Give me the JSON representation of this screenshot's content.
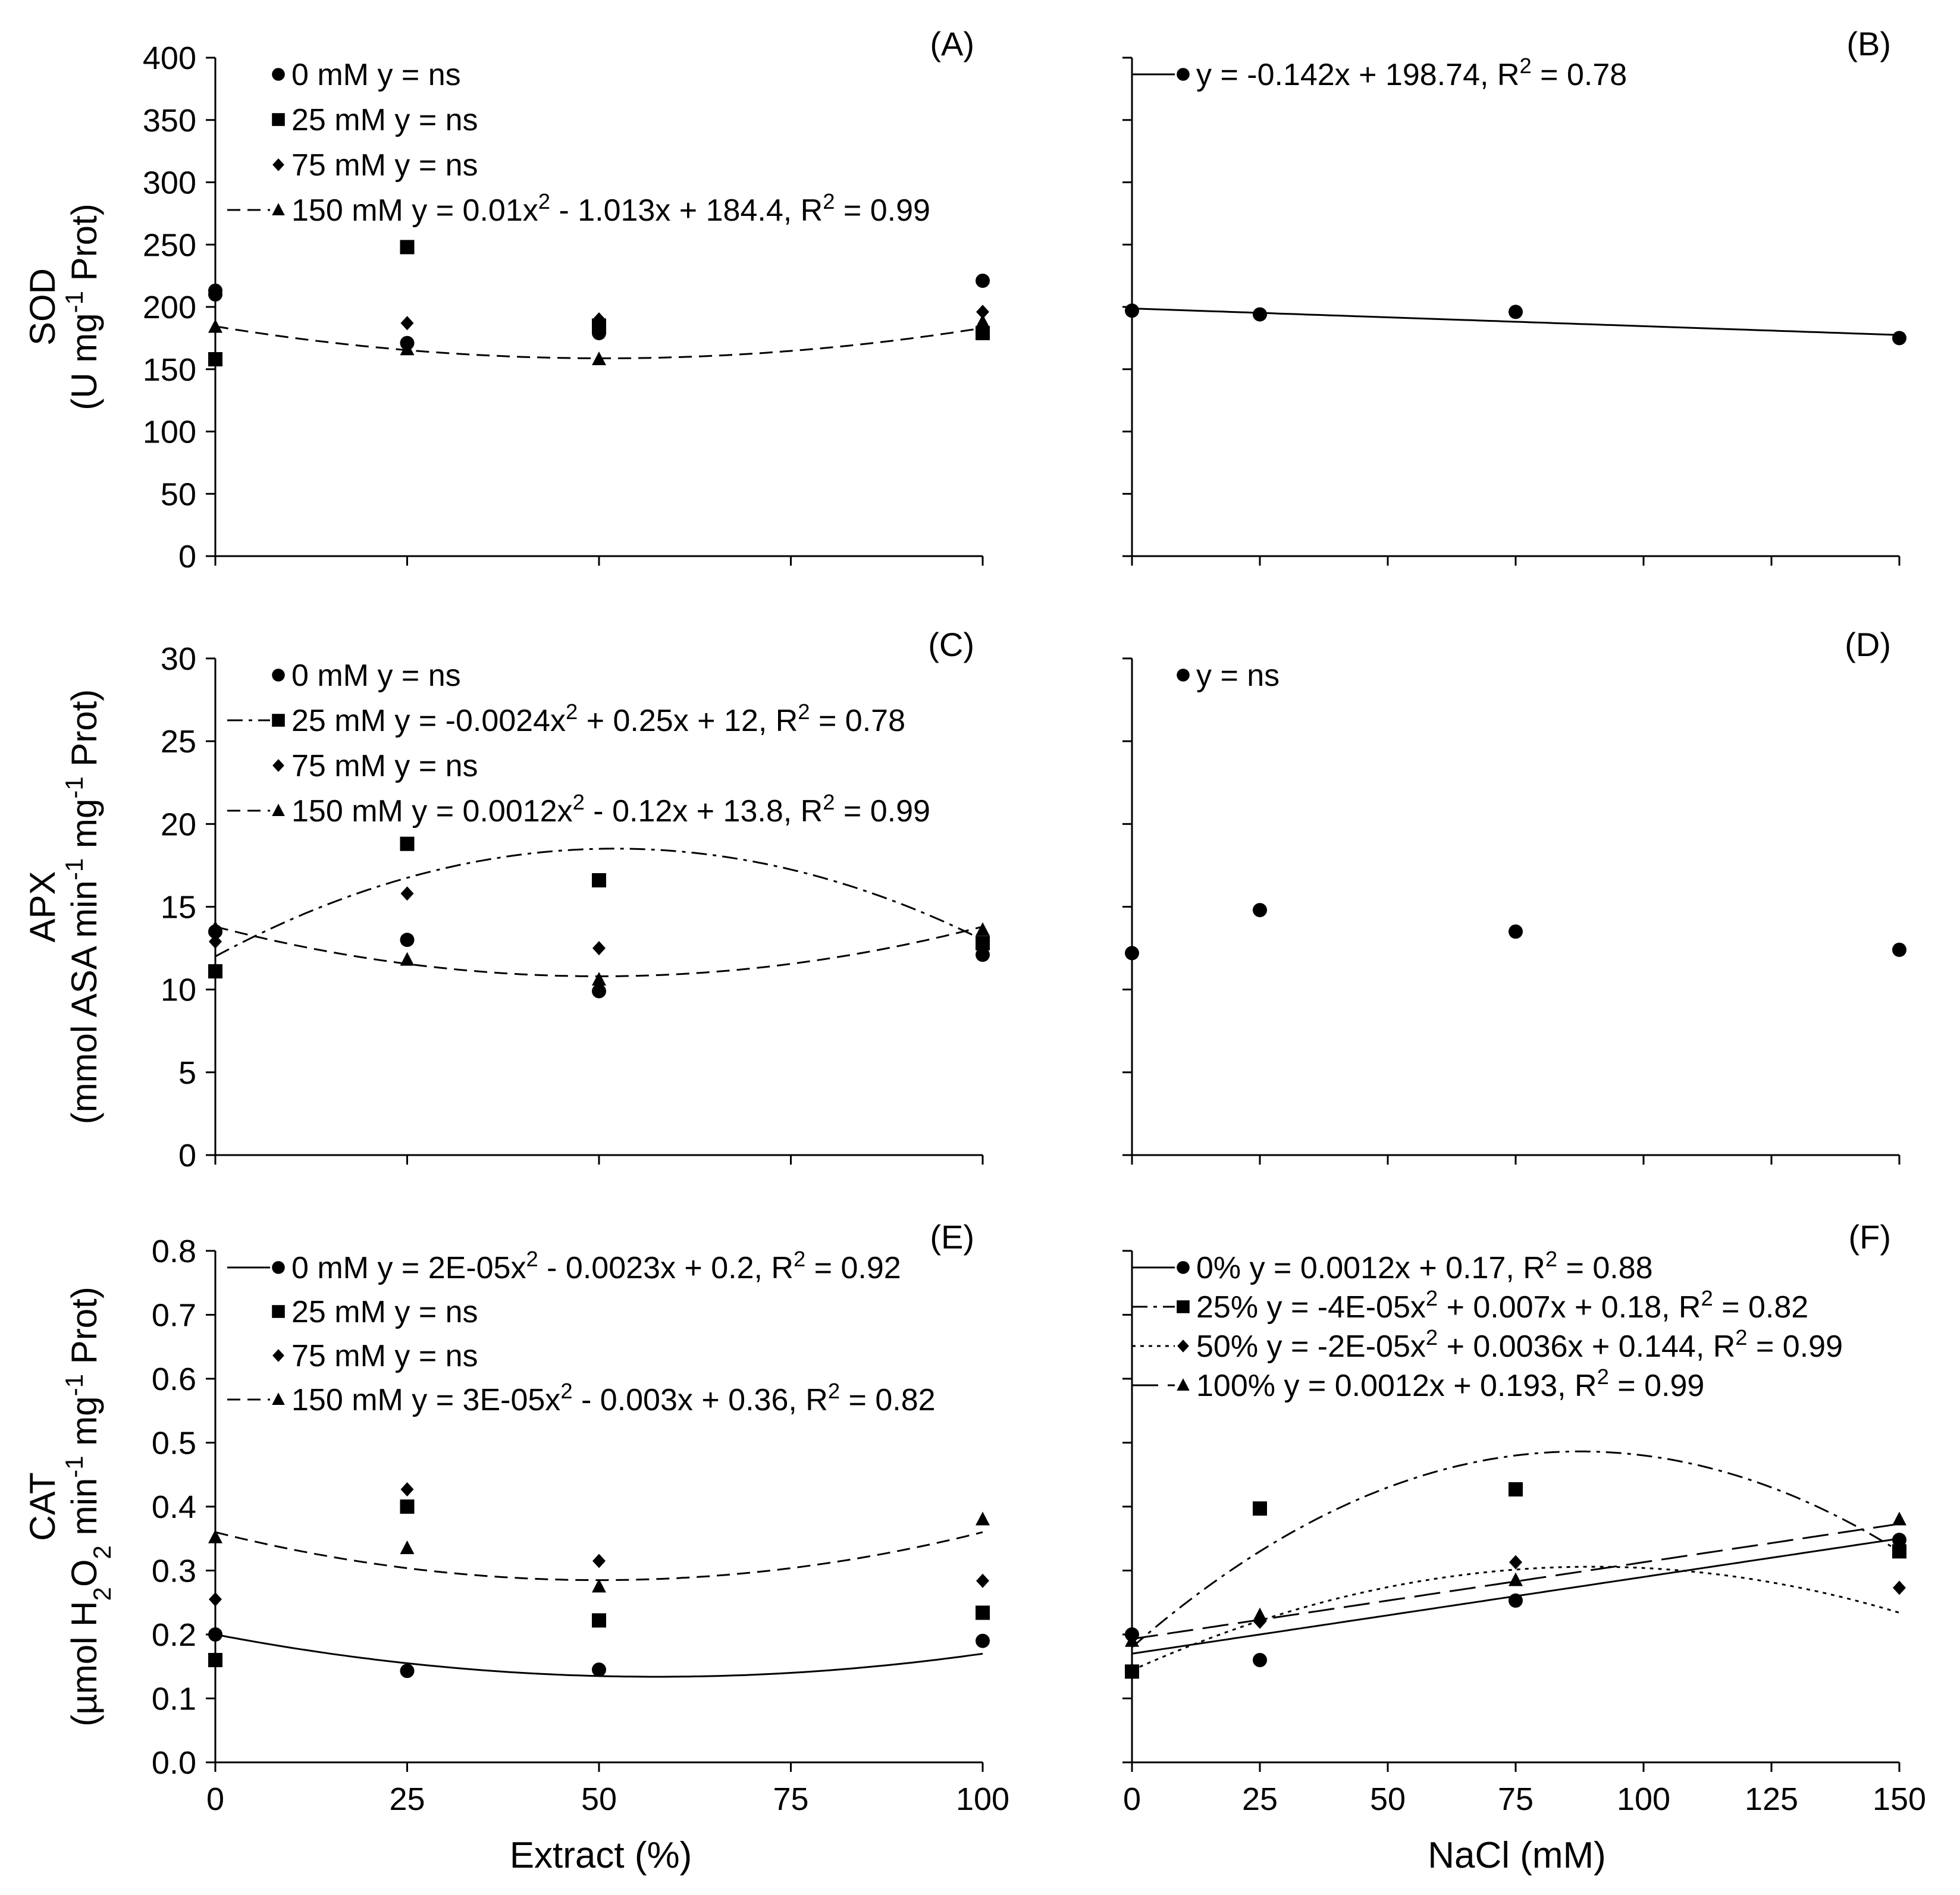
{
  "figure": {
    "colors": {
      "ink": "#000000",
      "background": "#ffffff"
    },
    "xlabels": {
      "left": "Extract (%)",
      "right": "NaCl (mM)"
    }
  },
  "chart_data": [
    {
      "id": "A",
      "panel_label": "(A)",
      "type": "scatter",
      "column": "left",
      "row": 0,
      "ylabel_main": "SOD",
      "ylabel_unit": "(U mg-1 Prot)",
      "ylim": [
        0,
        400
      ],
      "yticks": [
        0,
        50,
        100,
        150,
        200,
        250,
        300,
        350,
        400
      ],
      "ytick_labels": [
        "0",
        "50",
        "100",
        "150",
        "200",
        "250",
        "300",
        "350",
        "400"
      ],
      "xlim": [
        0,
        100
      ],
      "xticks": [
        0,
        25,
        50,
        75,
        100
      ],
      "xtick_labels": [
        "0",
        "25",
        "50",
        "75",
        "100"
      ],
      "show_xtick_labels": false,
      "xlabel": "Extract (%)",
      "series": [
        {
          "name": "0 mM",
          "marker": "circle",
          "x": [
            0,
            0,
            25,
            50,
            50,
            100
          ],
          "y": [
            213,
            210,
            171,
            179,
            183,
            221
          ],
          "legend_text": "0 mM   y = ns"
        },
        {
          "name": "25 mM",
          "marker": "square",
          "x": [
            0,
            25,
            50,
            100
          ],
          "y": [
            158,
            248,
            185,
            179
          ],
          "legend_text": "25 mM   y = ns"
        },
        {
          "name": "75 mM",
          "marker": "diamond",
          "x": [
            0,
            25,
            50,
            100
          ],
          "y": [
            212,
            187,
            190,
            196
          ],
          "legend_text": "75 mM   y = ns"
        },
        {
          "name": "150 mM",
          "marker": "triangle",
          "x": [
            0,
            25,
            50,
            100
          ],
          "y": [
            184,
            166,
            158,
            188
          ],
          "legend_text": "150 mM   y = 0.01x² - 1.013x + 184.4, R² = 0.99",
          "fit": {
            "coef": [
              0.01,
              -1.013,
              184.4
            ],
            "dash": "dashed"
          }
        }
      ]
    },
    {
      "id": "B",
      "panel_label": "(B)",
      "type": "scatter",
      "column": "right",
      "row": 0,
      "ylim": [
        0,
        400
      ],
      "yticks": [
        0,
        50,
        100,
        150,
        200,
        250,
        300,
        350,
        400
      ],
      "xlim": [
        0,
        150
      ],
      "xticks": [
        0,
        25,
        50,
        75,
        100,
        125,
        150
      ],
      "xtick_labels": [
        "0",
        "25",
        "50",
        "75",
        "100",
        "125",
        "150"
      ],
      "show_xtick_labels": false,
      "xlabel": "NaCl (mM)",
      "series": [
        {
          "name": "mean",
          "marker": "circle",
          "x": [
            0,
            25,
            75,
            150
          ],
          "y": [
            197,
            194,
            196,
            175
          ],
          "legend_text": "y = -0.142x + 198.74, R² = 0.78",
          "fit": {
            "coef": [
              0,
              -0.142,
              198.74
            ],
            "dash": "solid"
          }
        }
      ]
    },
    {
      "id": "C",
      "panel_label": "(C)",
      "type": "scatter",
      "column": "left",
      "row": 1,
      "ylabel_main": "APX",
      "ylabel_unit": "(mmol ASA  min-1 mg-1 Prot)",
      "ylim": [
        0,
        30
      ],
      "yticks": [
        0,
        5,
        10,
        15,
        20,
        25,
        30
      ],
      "ytick_labels": [
        "0",
        "5",
        "10",
        "15",
        "20",
        "25",
        "30"
      ],
      "xlim": [
        0,
        100
      ],
      "xticks": [
        0,
        25,
        50,
        75,
        100
      ],
      "xtick_labels": [
        "0",
        "25",
        "50",
        "75",
        "100"
      ],
      "show_xtick_labels": false,
      "xlabel": "Extract (%)",
      "series": [
        {
          "name": "0 mM",
          "marker": "circle",
          "x": [
            0,
            25,
            50,
            100
          ],
          "y": [
            13.5,
            13.0,
            9.9,
            12.1
          ],
          "legend_text": "0 mM   y = ns"
        },
        {
          "name": "25 mM",
          "marker": "square",
          "x": [
            0,
            25,
            50,
            100
          ],
          "y": [
            11.1,
            18.8,
            16.6,
            12.8
          ],
          "legend_text": "25 mM   y = -0.0024x² + 0.25x + 12, R² = 0.78",
          "fit": {
            "coef": [
              -0.0024,
              0.25,
              12
            ],
            "dash": "dashdot"
          }
        },
        {
          "name": "75 mM",
          "marker": "diamond",
          "x": [
            0,
            25,
            50,
            100
          ],
          "y": [
            12.9,
            15.8,
            12.5,
            12.5
          ],
          "legend_text": "75 mM   y = ns"
        },
        {
          "name": "150 mM",
          "marker": "triangle",
          "x": [
            0,
            25,
            50,
            100
          ],
          "y": [
            13.7,
            11.8,
            10.6,
            13.6
          ],
          "legend_text": "150 mM   y = 0.0012x² - 0.12x + 13.8, R² = 0.99",
          "fit": {
            "coef": [
              0.0012,
              -0.12,
              13.8
            ],
            "dash": "dashed"
          }
        }
      ]
    },
    {
      "id": "D",
      "panel_label": "(D)",
      "type": "scatter",
      "column": "right",
      "row": 1,
      "ylim": [
        0,
        30
      ],
      "yticks": [
        0,
        5,
        10,
        15,
        20,
        25,
        30
      ],
      "xlim": [
        0,
        150
      ],
      "xticks": [
        0,
        25,
        50,
        75,
        100,
        125,
        150
      ],
      "xtick_labels": [
        "0",
        "25",
        "50",
        "75",
        "100",
        "125",
        "150"
      ],
      "show_xtick_labels": false,
      "xlabel": "NaCl (mM)",
      "series": [
        {
          "name": "mean",
          "marker": "circle",
          "x": [
            0,
            25,
            75,
            150
          ],
          "y": [
            12.2,
            14.8,
            13.5,
            12.4
          ],
          "legend_text": "y = ns"
        }
      ]
    },
    {
      "id": "E",
      "panel_label": "(E)",
      "type": "scatter",
      "column": "left",
      "row": 2,
      "ylabel_main": "CAT",
      "ylabel_unit": "(µmol H2O2  min-1 mg-1 Prot)",
      "ylim": [
        0,
        0.8
      ],
      "yticks": [
        0,
        0.1,
        0.2,
        0.3,
        0.4,
        0.5,
        0.6,
        0.7,
        0.8
      ],
      "ytick_labels": [
        "0.0",
        "0.1",
        "0.2",
        "0.3",
        "0.4",
        "0.5",
        "0.6",
        "0.7",
        "0.8"
      ],
      "xlim": [
        0,
        100
      ],
      "xticks": [
        0,
        25,
        50,
        75,
        100
      ],
      "xtick_labels": [
        "0",
        "25",
        "50",
        "75",
        "100"
      ],
      "show_xtick_labels": true,
      "xlabel": "Extract (%)",
      "series": [
        {
          "name": "0 mM",
          "marker": "circle",
          "x": [
            0,
            25,
            50,
            100
          ],
          "y": [
            0.2,
            0.143,
            0.145,
            0.19
          ],
          "legend_text": "0 mM   y = 2E-05x² - 0.0023x + 0.2, R² = 0.92",
          "fit": {
            "coef": [
              2e-05,
              -0.0023,
              0.2
            ],
            "dash": "solid"
          }
        },
        {
          "name": "25 mM",
          "marker": "square",
          "x": [
            0,
            25,
            50,
            100
          ],
          "y": [
            0.16,
            0.4,
            0.222,
            0.234
          ],
          "legend_text": "25 mM   y = ns"
        },
        {
          "name": "75 mM",
          "marker": "diamond",
          "x": [
            0,
            25,
            50,
            100
          ],
          "y": [
            0.255,
            0.427,
            0.315,
            0.284
          ],
          "legend_text": "75 mM   y = ns"
        },
        {
          "name": "150 mM",
          "marker": "triangle",
          "x": [
            0,
            25,
            50,
            100
          ],
          "y": [
            0.352,
            0.335,
            0.275,
            0.38
          ],
          "legend_text": "150 mM   y = 3E-05x² - 0.003x + 0.36, R² = 0.82",
          "fit": {
            "coef": [
              3e-05,
              -0.003,
              0.36
            ],
            "dash": "dashed"
          }
        }
      ]
    },
    {
      "id": "F",
      "panel_label": "(F)",
      "type": "scatter",
      "column": "right",
      "row": 2,
      "ylim": [
        0,
        0.8
      ],
      "yticks": [
        0,
        0.1,
        0.2,
        0.3,
        0.4,
        0.5,
        0.6,
        0.7,
        0.8
      ],
      "xlim": [
        0,
        150
      ],
      "xticks": [
        0,
        25,
        50,
        75,
        100,
        125,
        150
      ],
      "xtick_labels": [
        "0",
        "25",
        "50",
        "75",
        "100",
        "125",
        "150"
      ],
      "show_xtick_labels": true,
      "xlabel": "NaCl (mM)",
      "series": [
        {
          "name": "0%",
          "marker": "circle",
          "x": [
            0,
            25,
            75,
            150
          ],
          "y": [
            0.2,
            0.16,
            0.253,
            0.348
          ],
          "legend_text": "0%   y = 0.0012x + 0.17, R² = 0.88",
          "fit": {
            "coef": [
              0,
              0.0012,
              0.17
            ],
            "dash": "solid"
          }
        },
        {
          "name": "25%",
          "marker": "square",
          "x": [
            0,
            25,
            75,
            150
          ],
          "y": [
            0.142,
            0.397,
            0.427,
            0.33
          ],
          "legend_text": "25%   y = -4E-05x² + 0.007x + 0.18, R² = 0.82",
          "fit": {
            "coef": [
              -4e-05,
              0.007,
              0.18
            ],
            "dash": "dashdot"
          }
        },
        {
          "name": "50%",
          "marker": "diamond",
          "x": [
            0,
            25,
            75,
            150
          ],
          "y": [
            0.144,
            0.22,
            0.313,
            0.273
          ],
          "legend_text": "50%   y = -2E-05x² + 0.0036x + 0.144, R² = 0.99",
          "fit": {
            "coef": [
              -2e-05,
              0.0036,
              0.144
            ],
            "dash": "dotted"
          }
        },
        {
          "name": "100%",
          "marker": "triangle",
          "x": [
            0,
            25,
            75,
            150
          ],
          "y": [
            0.19,
            0.23,
            0.285,
            0.38
          ],
          "legend_text": "100%   y = 0.0012x + 0.193, R² = 0.99",
          "fit": {
            "coef": [
              0,
              0.0012,
              0.193
            ],
            "dash": "longdash"
          }
        }
      ]
    }
  ]
}
